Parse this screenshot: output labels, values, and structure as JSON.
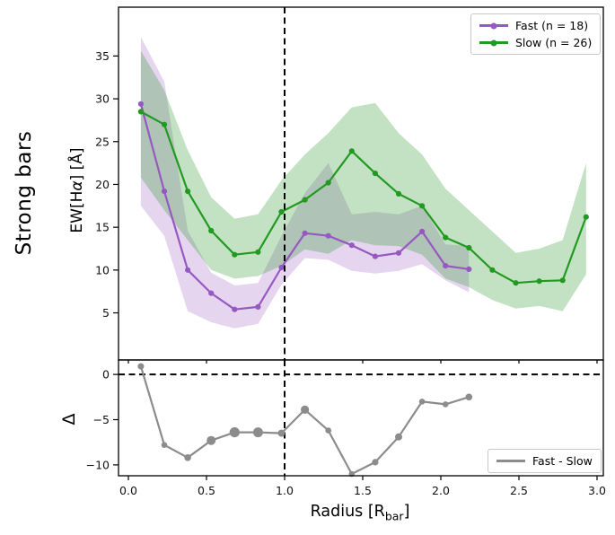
{
  "side_label": "Strong bars",
  "axes": {
    "top": {
      "ylabel_prefix": "EW[H",
      "ylabel_alpha": "α",
      "ylabel_suffix": "] [Å]",
      "yticks": [
        5,
        10,
        15,
        20,
        25,
        30,
        35
      ]
    },
    "bottom": {
      "ylabel": "Δ",
      "yticks": [
        0,
        -5,
        -10
      ]
    },
    "x": {
      "label_main": "Radius [R",
      "label_sub": "bar",
      "label_close": "]",
      "ticks": [
        "0.0",
        "0.5",
        "1.0",
        "1.5",
        "2.0",
        "2.5",
        "3.0"
      ]
    }
  },
  "legend_top": {
    "fast_label": "Fast (n = 18)",
    "slow_label": "Slow (n = 26)"
  },
  "legend_bottom": {
    "label": "Fast - Slow"
  },
  "colors": {
    "fast": "#9659c1",
    "slow": "#229a22",
    "delta": "#8c8c8c",
    "fast_band": "rgba(150,89,193,0.25)",
    "slow_band": "rgba(40,150,40,0.28)",
    "dashed": "#000000"
  },
  "chart_data": [
    {
      "type": "line",
      "panel": "top",
      "ylabel": "EW[Hα] [Å]",
      "xlim": [
        -0.06,
        3.04
      ],
      "ylim": [
        -0.5,
        40.7
      ],
      "yticks": [
        5,
        10,
        15,
        20,
        25,
        30,
        35
      ],
      "vline_x": 1.0,
      "grid": false,
      "legend_position": "upper right",
      "series": [
        {
          "name": "Fast (n = 18)",
          "color": "#9659c1",
          "x": [
            0.08,
            0.23,
            0.38,
            0.53,
            0.68,
            0.83,
            0.98,
            1.13,
            1.28,
            1.43,
            1.58,
            1.73,
            1.88,
            2.03,
            2.18
          ],
          "y": [
            29.4,
            19.2,
            10.0,
            7.3,
            5.4,
            5.7,
            10.3,
            14.3,
            14.0,
            12.9,
            11.6,
            12.0,
            14.5,
            10.5,
            10.1
          ],
          "band_upper": [
            37.2,
            32.0,
            14.6,
            9.7,
            8.2,
            8.5,
            14.0,
            19.0,
            22.5,
            16.5,
            16.8,
            16.5,
            17.5,
            13.0,
            12.8
          ],
          "band_lower": [
            17.5,
            14.0,
            5.2,
            3.9,
            3.2,
            3.7,
            8.3,
            11.4,
            11.2,
            9.9,
            9.6,
            9.9,
            10.7,
            8.8,
            7.4
          ]
        },
        {
          "name": "Slow (n = 26)",
          "color": "#229a22",
          "x": [
            0.08,
            0.23,
            0.38,
            0.53,
            0.68,
            0.83,
            0.98,
            1.13,
            1.28,
            1.43,
            1.58,
            1.73,
            1.88,
            2.03,
            2.18,
            2.33,
            2.48,
            2.63,
            2.78,
            2.93
          ],
          "y": [
            28.5,
            27.0,
            19.2,
            14.6,
            11.8,
            12.1,
            16.8,
            18.2,
            20.2,
            23.9,
            21.3,
            18.9,
            17.5,
            13.8,
            12.6,
            10.0,
            8.5,
            8.7,
            8.8,
            16.2
          ],
          "band_upper": [
            35.6,
            31.0,
            24.0,
            18.5,
            16.0,
            16.5,
            20.5,
            23.5,
            26.0,
            29.0,
            29.5,
            26.0,
            23.5,
            19.5,
            17.0,
            14.5,
            12.0,
            12.5,
            13.5,
            22.5
          ],
          "band_lower": [
            20.8,
            17.0,
            13.5,
            10.0,
            9.0,
            9.3,
            10.5,
            12.4,
            11.9,
            13.5,
            12.9,
            12.8,
            11.8,
            9.0,
            8.0,
            6.5,
            5.5,
            5.8,
            5.2,
            9.5
          ]
        }
      ]
    },
    {
      "type": "line",
      "panel": "bottom",
      "ylabel": "Δ",
      "xlabel": "Radius [R_bar]",
      "xlim": [
        -0.06,
        3.04
      ],
      "ylim": [
        -11.2,
        1.6
      ],
      "yticks": [
        0,
        -5,
        -10
      ],
      "xticks": [
        0.0,
        0.5,
        1.0,
        1.5,
        2.0,
        2.5,
        3.0
      ],
      "vline_x": 1.0,
      "hline_y": 0,
      "grid": false,
      "legend_position": "lower right",
      "series": [
        {
          "name": "Fast - Slow",
          "color": "#8c8c8c",
          "x": [
            0.08,
            0.23,
            0.38,
            0.53,
            0.68,
            0.83,
            0.98,
            1.13,
            1.28,
            1.43,
            1.58,
            1.73,
            1.88,
            2.03,
            2.18
          ],
          "y": [
            0.9,
            -7.8,
            -9.2,
            -7.3,
            -6.4,
            -6.4,
            -6.5,
            -3.9,
            -6.2,
            -11.0,
            -9.7,
            -6.9,
            -3.0,
            -3.3,
            -2.5
          ],
          "marker_radii": [
            3.5,
            3.3,
            3.8,
            5.0,
            5.6,
            5.5,
            4.0,
            4.6,
            3.3,
            3.3,
            3.6,
            4.0,
            3.3,
            3.3,
            3.8
          ]
        }
      ]
    }
  ]
}
